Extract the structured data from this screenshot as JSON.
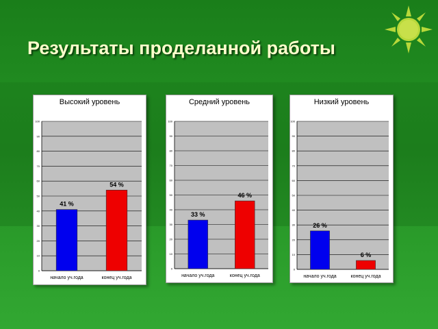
{
  "slide": {
    "title": "Результаты проделанной работы",
    "sun_icon": "sun-icon"
  },
  "colors": {
    "start": "#0000ee",
    "end": "#ee0000",
    "plot_bg": "#c0c0c0",
    "sun": "#b8d83a"
  },
  "chart_data": [
    {
      "type": "bar",
      "title": "Высокий уровень",
      "categories": [
        "начало уч.года",
        "конец уч.года"
      ],
      "values": [
        41,
        54
      ],
      "labels": [
        "41 %",
        "54 %"
      ],
      "ylim": [
        0,
        100
      ],
      "yticks": [
        0,
        10,
        20,
        30,
        40,
        50,
        60,
        70,
        80,
        90,
        100
      ],
      "grid": true
    },
    {
      "type": "bar",
      "title": "Средний уровень",
      "categories": [
        "начало уч.года",
        "конец уч.года"
      ],
      "values": [
        33,
        46
      ],
      "labels": [
        "33 %",
        "46 %"
      ],
      "ylim": [
        0,
        100
      ],
      "yticks": [
        0,
        10,
        20,
        30,
        40,
        50,
        60,
        70,
        80,
        90,
        100
      ],
      "grid": true
    },
    {
      "type": "bar",
      "title": "Низкий уровень",
      "categories": [
        "начало уч.года",
        "конец уч.года"
      ],
      "values": [
        26,
        6
      ],
      "labels": [
        "26 %",
        "6 %"
      ],
      "ylim": [
        0,
        100
      ],
      "yticks": [
        0,
        10,
        20,
        30,
        40,
        50,
        60,
        70,
        80,
        90,
        100
      ],
      "grid": true
    }
  ]
}
